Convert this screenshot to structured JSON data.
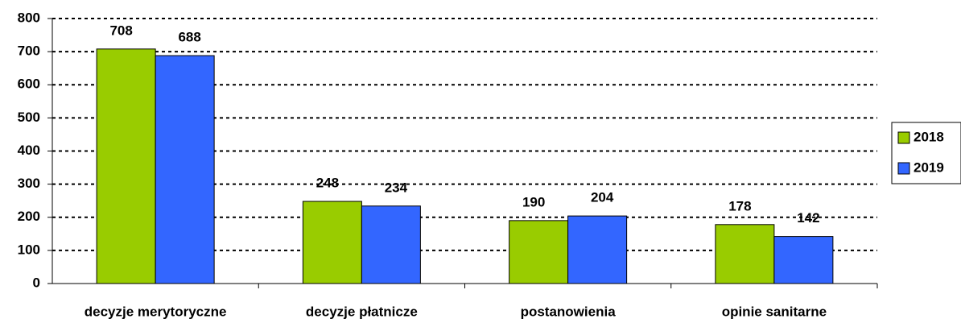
{
  "chart_data": {
    "type": "bar",
    "categories": [
      "decyzje merytoryczne",
      "decyzje płatnicze",
      "postanowienia",
      "opinie sanitarne"
    ],
    "series": [
      {
        "name": "2018",
        "color": "#99cc00",
        "values": [
          708,
          248,
          190,
          178
        ]
      },
      {
        "name": "2019",
        "color": "#3366ff",
        "values": [
          688,
          234,
          204,
          142
        ]
      }
    ],
    "ylim": [
      0,
      800
    ],
    "yticks": [
      0,
      100,
      200,
      300,
      400,
      500,
      600,
      700,
      800
    ],
    "grid": true,
    "legend": "right"
  }
}
